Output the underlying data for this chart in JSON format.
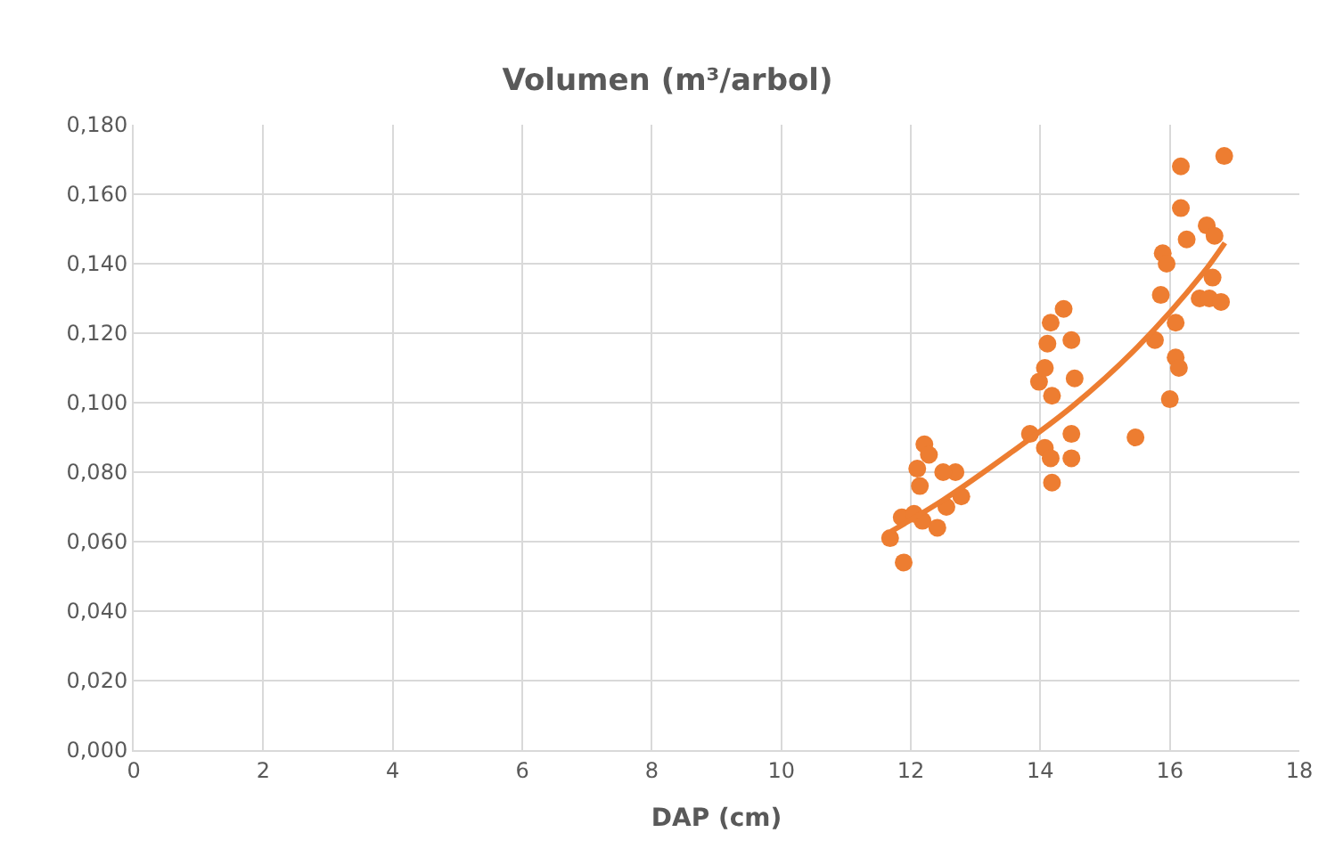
{
  "chart_data": {
    "type": "scatter",
    "title": "Volumen (m³/arbol)",
    "xlabel": "DAP (cm)",
    "xlim": [
      0,
      18
    ],
    "xticks": [
      0,
      2,
      4,
      6,
      8,
      10,
      12,
      14,
      16,
      18
    ],
    "ylim": [
      0,
      0.18
    ],
    "yticks": [
      {
        "value": 0,
        "label": "0,000"
      },
      {
        "value": 0.02,
        "label": "0,020"
      },
      {
        "value": 0.04,
        "label": "0,040"
      },
      {
        "value": 0.06,
        "label": "0,060"
      },
      {
        "value": 0.08,
        "label": "0,080"
      },
      {
        "value": 0.1,
        "label": "0,100"
      },
      {
        "value": 0.12,
        "label": "0,120"
      },
      {
        "value": 0.14,
        "label": "0,140"
      },
      {
        "value": 0.16,
        "label": "0,160"
      },
      {
        "value": 0.18,
        "label": "0,180"
      }
    ],
    "grid": true,
    "marker": "circle",
    "series": [
      {
        "color": "#ed7d31",
        "x": [
          11.68,
          11.89,
          12.21,
          12.1,
          11.86,
          12.05,
          12.18,
          12.41,
          12.55,
          12.78,
          12.69,
          12.5,
          12.28,
          12.14,
          13.84,
          14.07,
          14.16,
          14.18,
          14.48,
          14.48,
          13.98,
          14.07,
          14.11,
          14.16,
          14.36,
          14.48,
          14.53,
          14.18,
          15.47,
          16.0,
          15.77,
          16.09,
          16.09,
          16.14,
          15.89,
          15.95,
          15.86,
          16.17,
          16.17,
          16.26,
          16.57,
          16.69,
          16.84,
          16.66,
          16.46,
          16.61,
          16.79
        ],
        "values": [
          0.061,
          0.054,
          0.088,
          0.081,
          0.067,
          0.068,
          0.066,
          0.064,
          0.07,
          0.073,
          0.08,
          0.08,
          0.085,
          0.076,
          0.091,
          0.087,
          0.084,
          0.077,
          0.091,
          0.084,
          0.106,
          0.11,
          0.117,
          0.123,
          0.127,
          0.118,
          0.107,
          0.102,
          0.09,
          0.101,
          0.118,
          0.123,
          0.113,
          0.11,
          0.143,
          0.14,
          0.131,
          0.168,
          0.156,
          0.147,
          0.151,
          0.148,
          0.171,
          0.136,
          0.13,
          0.13,
          0.129
        ]
      },
      {
        "type": "line",
        "color": "#ed7d31",
        "marker": "none",
        "x": [
          11.7,
          12.5,
          13.5,
          14.5,
          15.5,
          16.5,
          16.85
        ],
        "values": [
          0.063,
          0.072,
          0.085,
          0.099,
          0.116,
          0.137,
          0.146
        ]
      }
    ]
  }
}
